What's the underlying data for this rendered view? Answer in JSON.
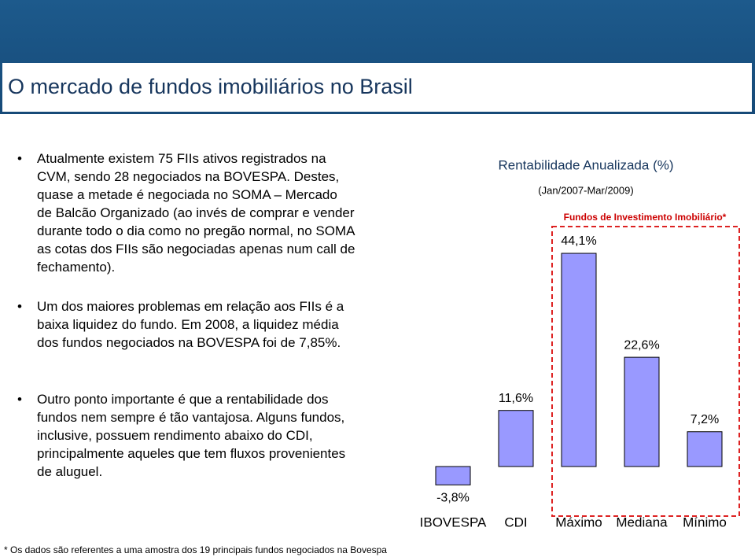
{
  "title": "O mercado de fundos imobiliários no Brasil",
  "bullets": [
    "Atualmente existem 75 FIIs ativos registrados na CVM, sendo 28 negociados na BOVESPA. Destes, quase a metade é negociada no SOMA – Mercado de Balcão Organizado (ao invés de comprar e vender durante todo o dia como no pregão normal, no SOMA as cotas dos FIIs são negociadas apenas num call de fechamento).",
    "Um dos maiores problemas em relação aos FIIs é a baixa liquidez do fundo. Em 2008, a liquidez média dos fundos negociados na BOVESPA foi de 7,85%.",
    "Outro ponto importante é que a rentabilidade dos fundos nem sempre é tão vantajosa. Alguns fundos, inclusive, possuem rendimento abaixo do CDI, principalmente aqueles que tem fluxos provenientes de aluguel."
  ],
  "footnote": "* Os dados são referentes a uma amostra dos 19 principais fundos negociados na Bovespa",
  "chart_data": {
    "type": "bar",
    "title": "Rentabilidade Anualizada (%)",
    "subtitle": "(Jan/2007-Mar/2009)",
    "annotation": "Fundos de Investimento Imobiliário*",
    "categories": [
      "IBOVESPA",
      "CDI",
      "Máximo",
      "Mediana",
      "Mínimo"
    ],
    "values": [
      -3.8,
      11.6,
      44.1,
      22.6,
      7.2
    ],
    "value_labels": [
      "-3,8%",
      "11,6%",
      "44,1%",
      "22,6%",
      "7,2%"
    ],
    "color": "#9999ff"
  }
}
